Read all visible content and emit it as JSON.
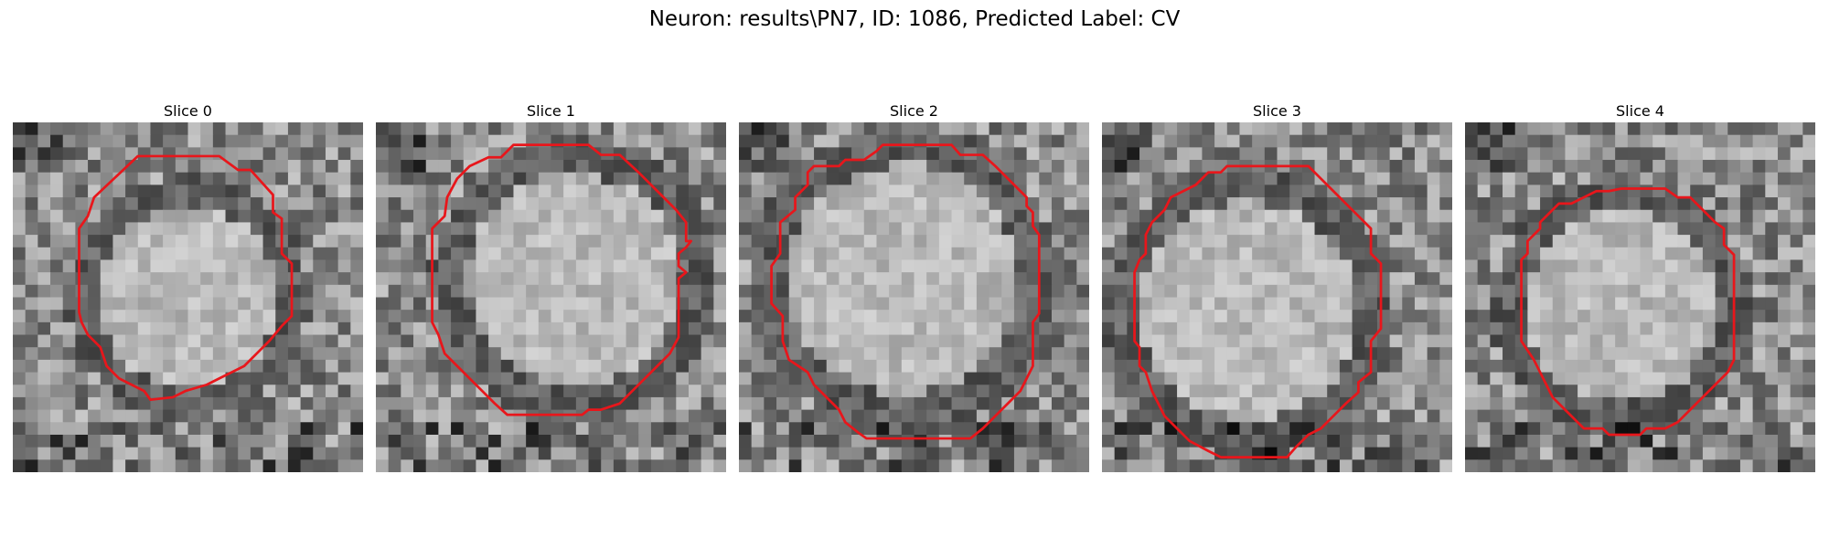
{
  "figure": {
    "title": "Neuron: results\\PN7, ID: 1086, Predicted Label: CV",
    "colors": {
      "contour": "#e8161b",
      "background": "#ffffff"
    },
    "image_grid": 28,
    "panels": [
      {
        "title": "Slice 0",
        "seed": 11,
        "contour": [
          [
            10,
            2.7
          ],
          [
            16.5,
            2.7
          ],
          [
            18,
            3.8
          ],
          [
            19,
            3.8
          ],
          [
            20.8,
            5.8
          ],
          [
            20.8,
            7.2
          ],
          [
            21.5,
            7.7
          ],
          [
            21.5,
            10.5
          ],
          [
            22.3,
            11.3
          ],
          [
            22.3,
            15.5
          ],
          [
            21.5,
            16.3
          ],
          [
            20.5,
            17.5
          ],
          [
            19.5,
            18.5
          ],
          [
            18.5,
            19.5
          ],
          [
            16.5,
            20.5
          ],
          [
            15.5,
            21
          ],
          [
            13.8,
            21.5
          ],
          [
            12.8,
            22
          ],
          [
            11,
            22.2
          ],
          [
            10.5,
            21.5
          ],
          [
            9.5,
            21
          ],
          [
            8.5,
            20.5
          ],
          [
            7.5,
            19.5
          ],
          [
            7,
            18
          ],
          [
            6,
            17
          ],
          [
            5.5,
            16
          ],
          [
            5.3,
            15.2
          ],
          [
            5.3,
            8.5
          ],
          [
            6,
            7.5
          ],
          [
            6.5,
            6
          ]
        ]
      },
      {
        "title": "Slice 1",
        "seed": 23,
        "contour": [
          [
            11,
            1.8
          ],
          [
            17,
            1.8
          ],
          [
            18,
            2.6
          ],
          [
            19.5,
            2.6
          ],
          [
            21,
            4
          ],
          [
            22.5,
            5.5
          ],
          [
            24,
            7
          ],
          [
            24.8,
            8
          ],
          [
            24.8,
            9.5
          ],
          [
            25.2,
            9.5
          ],
          [
            24.8,
            10
          ],
          [
            24.2,
            10.5
          ],
          [
            24.2,
            11.5
          ],
          [
            24.8,
            12
          ],
          [
            24.2,
            12.5
          ],
          [
            24.2,
            17.2
          ],
          [
            23.5,
            18.5
          ],
          [
            22.5,
            19.5
          ],
          [
            21.5,
            20.5
          ],
          [
            20.5,
            21.5
          ],
          [
            19.5,
            22.5
          ],
          [
            18,
            23
          ],
          [
            17,
            23
          ],
          [
            16.5,
            23.4
          ],
          [
            10.5,
            23.4
          ],
          [
            9.5,
            22.5
          ],
          [
            8.5,
            21.5
          ],
          [
            7.5,
            20.5
          ],
          [
            6.5,
            19.5
          ],
          [
            5.5,
            18.5
          ],
          [
            5,
            17
          ],
          [
            4.5,
            16
          ],
          [
            4.5,
            8.5
          ],
          [
            5.5,
            7.5
          ],
          [
            5.7,
            6
          ],
          [
            6.5,
            4.5
          ],
          [
            7.5,
            3.5
          ],
          [
            9,
            2.8
          ],
          [
            10,
            2.8
          ]
        ]
      },
      {
        "title": "Slice 2",
        "seed": 37,
        "contour": [
          [
            11.5,
            1.8
          ],
          [
            17,
            1.8
          ],
          [
            17.7,
            2.6
          ],
          [
            19.5,
            2.6
          ],
          [
            20.5,
            3.5
          ],
          [
            21.5,
            4.5
          ],
          [
            22.5,
            5.5
          ],
          [
            23,
            6
          ],
          [
            23,
            6.7
          ],
          [
            23.5,
            7.2
          ],
          [
            23.5,
            8.3
          ],
          [
            24,
            9
          ],
          [
            24,
            15.3
          ],
          [
            23.5,
            16
          ],
          [
            23.5,
            19.5
          ],
          [
            23,
            20.5
          ],
          [
            22.5,
            21.5
          ],
          [
            21.5,
            22.5
          ],
          [
            20.5,
            23.5
          ],
          [
            19.5,
            24.5
          ],
          [
            18.5,
            25.3
          ],
          [
            10.2,
            25.3
          ],
          [
            9.5,
            24.8
          ],
          [
            8.5,
            24
          ],
          [
            8,
            23
          ],
          [
            7.5,
            22.5
          ],
          [
            7,
            22
          ],
          [
            6,
            21
          ],
          [
            5.5,
            20
          ],
          [
            4,
            19
          ],
          [
            3.5,
            17.5
          ],
          [
            3.5,
            15.5
          ],
          [
            2.6,
            14.5
          ],
          [
            2.6,
            11.5
          ],
          [
            3.3,
            10.5
          ],
          [
            3.3,
            8
          ],
          [
            4.5,
            7
          ],
          [
            4.5,
            6
          ],
          [
            5.5,
            5
          ],
          [
            5.5,
            4
          ],
          [
            6,
            3.5
          ],
          [
            8,
            3.5
          ],
          [
            8.5,
            3
          ],
          [
            10,
            3
          ],
          [
            11,
            2.3
          ]
        ]
      },
      {
        "title": "Slice 3",
        "seed": 51,
        "contour": [
          [
            10,
            3.5
          ],
          [
            16.5,
            3.5
          ],
          [
            17.5,
            4.5
          ],
          [
            18.5,
            5.5
          ],
          [
            19.5,
            6.5
          ],
          [
            20.5,
            7.5
          ],
          [
            21.5,
            8.5
          ],
          [
            21.5,
            10.5
          ],
          [
            22.3,
            11.3
          ],
          [
            22.3,
            16.5
          ],
          [
            21.5,
            17.5
          ],
          [
            21.5,
            20
          ],
          [
            20.5,
            20.8
          ],
          [
            20.5,
            21.6
          ],
          [
            19.5,
            22.5
          ],
          [
            18.5,
            23.5
          ],
          [
            17.5,
            24.5
          ],
          [
            16.5,
            25
          ],
          [
            15.5,
            26
          ],
          [
            14.8,
            26.8
          ],
          [
            9.5,
            26.8
          ],
          [
            8.5,
            26.3
          ],
          [
            7,
            25.5
          ],
          [
            6,
            24.5
          ],
          [
            5,
            23.5
          ],
          [
            4.5,
            22.5
          ],
          [
            4,
            21.5
          ],
          [
            3.5,
            20
          ],
          [
            3,
            19.5
          ],
          [
            3,
            18
          ],
          [
            2.6,
            17.5
          ],
          [
            2.6,
            12
          ],
          [
            3,
            11
          ],
          [
            3.5,
            10.5
          ],
          [
            3.5,
            9
          ],
          [
            4,
            8
          ],
          [
            5,
            7
          ],
          [
            5.5,
            6
          ],
          [
            6.5,
            5.5
          ],
          [
            7.5,
            5
          ],
          [
            8.5,
            4
          ],
          [
            9.5,
            4
          ]
        ]
      },
      {
        "title": "Slice 4",
        "seed": 67,
        "contour": [
          [
            12.5,
            5.3
          ],
          [
            16,
            5.3
          ],
          [
            17,
            6
          ],
          [
            18,
            6
          ],
          [
            19,
            7
          ],
          [
            20,
            8
          ],
          [
            20.7,
            8.5
          ],
          [
            20.7,
            9.8
          ],
          [
            21.5,
            10.6
          ],
          [
            21.5,
            19
          ],
          [
            21,
            20
          ],
          [
            20,
            21
          ],
          [
            19,
            22
          ],
          [
            18,
            23
          ],
          [
            17,
            24
          ],
          [
            16,
            24.5
          ],
          [
            14.5,
            24.5
          ],
          [
            14,
            25
          ],
          [
            11.5,
            25
          ],
          [
            11,
            24.5
          ],
          [
            9.5,
            24.5
          ],
          [
            9,
            24
          ],
          [
            8,
            23
          ],
          [
            7,
            22
          ],
          [
            6.5,
            21
          ],
          [
            6,
            20
          ],
          [
            5.5,
            19
          ],
          [
            4.5,
            17.5
          ],
          [
            4.5,
            11
          ],
          [
            5,
            10.5
          ],
          [
            5,
            9.5
          ],
          [
            6,
            8.5
          ],
          [
            6,
            8
          ],
          [
            7,
            7
          ],
          [
            7.5,
            6.5
          ],
          [
            8.5,
            6.5
          ],
          [
            9.5,
            6
          ],
          [
            10.5,
            5.5
          ],
          [
            11.5,
            5.5
          ]
        ]
      }
    ]
  }
}
